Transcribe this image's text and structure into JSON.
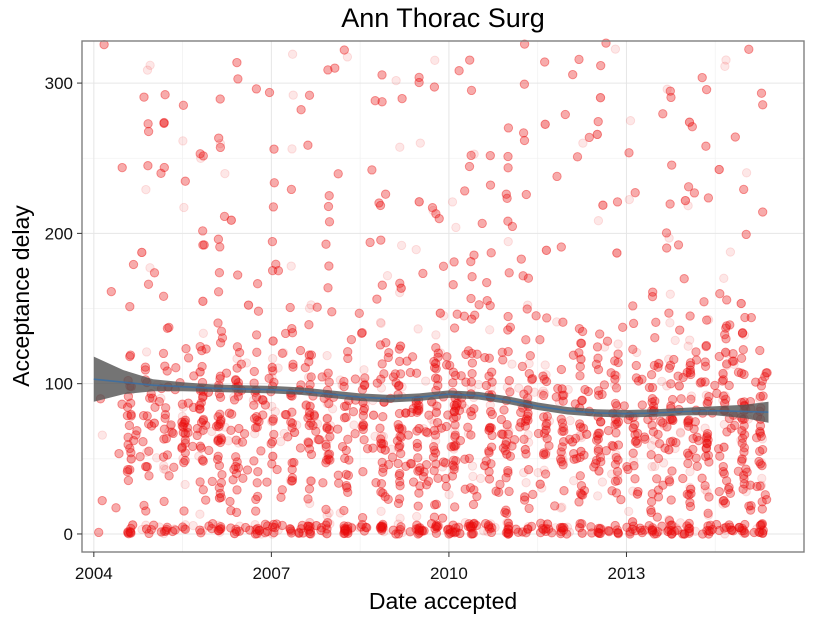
{
  "chart_data": {
    "type": "scatter",
    "title": "Ann Thorac Surg",
    "xlabel": "Date accepted",
    "ylabel": "Acceptance delay",
    "xlim": [
      2003.8,
      2016.0
    ],
    "ylim": [
      -12,
      328
    ],
    "x_ticks": [
      2004,
      2007,
      2010,
      2013
    ],
    "x_tick_labels": [
      "2004",
      "2007",
      "2010",
      "2013"
    ],
    "y_ticks": [
      0,
      100,
      200,
      300
    ],
    "y_tick_labels": [
      "0",
      "100",
      "200",
      "300"
    ],
    "grid": true,
    "legend": "none",
    "point_color": "#ee1111",
    "point_opacity": 0.1,
    "smooth_band_color": "#555555",
    "smooth_line_color": "#3a6ea5",
    "points": {
      "count": 6500,
      "x_range": [
        2004.0,
        2015.4
      ],
      "description": "dense scatter of acceptance delays, heavy cluster near 0-150 with a dense band near 0"
    },
    "smooth": {
      "x": [
        2004.0,
        2004.5,
        2005.0,
        2005.5,
        2006.0,
        2006.5,
        2007.0,
        2007.5,
        2008.0,
        2008.5,
        2009.0,
        2009.5,
        2010.0,
        2010.5,
        2011.0,
        2011.5,
        2012.0,
        2012.5,
        2013.0,
        2013.5,
        2014.0,
        2014.5,
        2015.0,
        2015.4
      ],
      "y": [
        103,
        101,
        99,
        98,
        97,
        96.5,
        96,
        95,
        93,
        91,
        90,
        91,
        93,
        92,
        89,
        85,
        82,
        80.5,
        80,
        80.5,
        81.5,
        82,
        81.5,
        81
      ],
      "lower": [
        88,
        93,
        95,
        95,
        94.5,
        94,
        93.5,
        92.5,
        90.5,
        88.5,
        87.5,
        88.5,
        90.5,
        89.5,
        86.5,
        82.5,
        79.5,
        78,
        77.5,
        78,
        79,
        79,
        77,
        74
      ],
      "upper": [
        118,
        109,
        103,
        101,
        99.5,
        99,
        98.5,
        97.5,
        95.5,
        93.5,
        92.5,
        93.5,
        95.5,
        94.5,
        91.5,
        87.5,
        84.5,
        83,
        82.5,
        83,
        84,
        85,
        86,
        88
      ]
    }
  }
}
